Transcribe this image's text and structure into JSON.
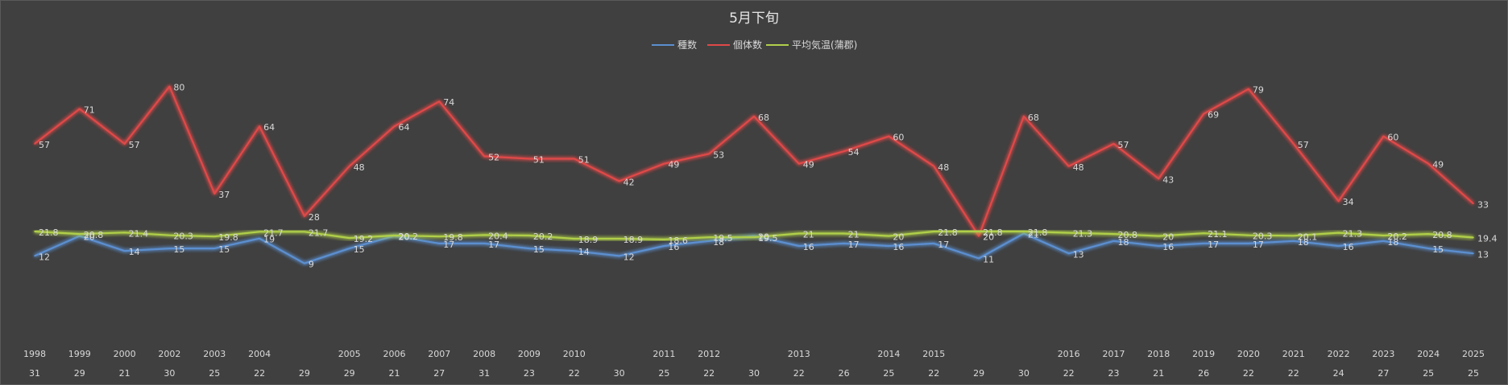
{
  "chart_data": {
    "type": "line",
    "title": "5月下旬",
    "legend_position": "top",
    "grid": false,
    "x_axis": {
      "label_rows": [
        [
          "1998",
          "1999",
          "2000",
          "2002",
          "2003",
          "2004",
          "",
          "2005",
          "2006",
          "2007",
          "2008",
          "2009",
          "2010",
          "",
          "2011",
          "2012",
          "",
          "2013",
          "",
          "2014",
          "2015",
          "",
          "",
          "2016",
          "2017",
          "2018",
          "2019",
          "2020",
          "2021",
          "2022",
          "2023",
          "2024",
          "2025"
        ],
        [
          "31",
          "29",
          "21",
          "30",
          "25",
          "22",
          "29",
          "29",
          "21",
          "27",
          "31",
          "23",
          "22",
          "30",
          "25",
          "22",
          "30",
          "22",
          "26",
          "25",
          "22",
          "29",
          "30",
          "22",
          "23",
          "21",
          "26",
          "22",
          "22",
          "24",
          "27",
          "25",
          "25"
        ]
      ]
    },
    "y_range": [
      0,
      90
    ],
    "series": [
      {
        "name": "種数",
        "color": "#5b8fd0",
        "values": [
          12,
          20,
          14,
          15,
          15,
          19,
          9,
          15,
          20,
          17,
          17,
          15,
          14,
          12,
          16,
          18,
          20,
          16,
          17,
          16,
          17,
          11,
          21,
          13,
          18,
          16,
          17,
          17,
          18,
          16,
          18,
          15,
          13
        ]
      },
      {
        "name": "個体数",
        "color": "#e04848",
        "values": [
          57,
          71,
          57,
          80,
          37,
          64,
          28,
          48,
          64,
          74,
          52,
          51,
          51,
          42,
          49,
          53,
          68,
          49,
          54,
          60,
          48,
          20,
          68,
          48,
          57,
          43,
          69,
          79,
          57,
          34,
          60,
          49,
          33
        ]
      },
      {
        "name": "平均気温(蒲郡)",
        "color": "#b0cf4a",
        "values": [
          21.8,
          20.8,
          21.4,
          20.3,
          19.8,
          21.7,
          21.7,
          19.2,
          20.2,
          19.8,
          20.4,
          20.2,
          18.9,
          18.9,
          18.6,
          19.5,
          19.5,
          21,
          21,
          20,
          21.8,
          21.8,
          21.8,
          21.3,
          20.8,
          20,
          21.1,
          20.3,
          20.1,
          21.3,
          20.2,
          20.8,
          19.4
        ]
      }
    ]
  }
}
